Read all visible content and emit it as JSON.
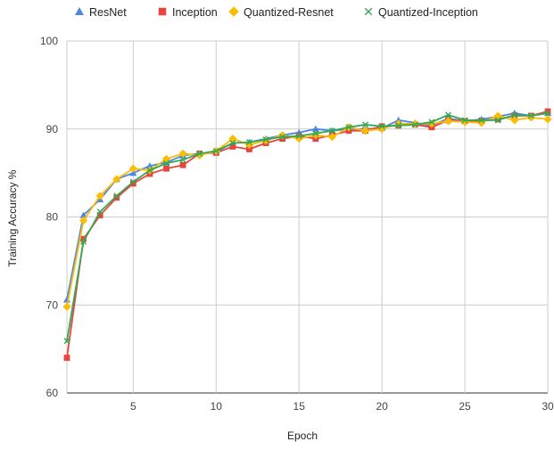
{
  "chart_data": {
    "type": "line",
    "title": "",
    "xlabel": "Epoch",
    "ylabel": "Training Accuracy %",
    "xlim": [
      1,
      30
    ],
    "ylim": [
      60,
      100
    ],
    "x_ticks": [
      5,
      10,
      15,
      20,
      25,
      30
    ],
    "y_ticks": [
      60,
      70,
      80,
      90,
      100
    ],
    "grid": true,
    "legend_position": "top",
    "x": [
      1,
      2,
      3,
      4,
      5,
      6,
      7,
      8,
      9,
      10,
      11,
      12,
      13,
      14,
      15,
      16,
      17,
      18,
      19,
      20,
      21,
      22,
      23,
      24,
      25,
      26,
      27,
      28,
      29,
      30
    ],
    "series": [
      {
        "name": "ResNet",
        "color": "#4a86e8",
        "marker": "triangle",
        "values": [
          70.6,
          80.2,
          82.0,
          84.3,
          85.0,
          85.8,
          86.2,
          87.0,
          87.2,
          87.4,
          88.4,
          88.5,
          88.9,
          89.3,
          89.6,
          90.0,
          89.8,
          90.0,
          90.0,
          90.1,
          91.0,
          90.7,
          90.4,
          91.2,
          90.9,
          91.1,
          91.4,
          91.8,
          91.5,
          91.8
        ]
      },
      {
        "name": "Inception",
        "color": "#e8453c",
        "marker": "square",
        "values": [
          64.0,
          77.5,
          80.2,
          82.2,
          83.8,
          84.9,
          85.5,
          85.9,
          87.2,
          87.3,
          88.0,
          87.7,
          88.4,
          88.9,
          89.2,
          88.9,
          89.3,
          89.8,
          89.8,
          90.3,
          90.4,
          90.5,
          90.2,
          91.0,
          90.9,
          90.9,
          91.1,
          91.5,
          91.5,
          92.0
        ]
      },
      {
        "name": "Quantized-Resnet",
        "color": "#fbbc04",
        "marker": "diamond",
        "values": [
          69.8,
          79.6,
          82.4,
          84.3,
          85.5,
          85.3,
          86.6,
          87.2,
          87.0,
          87.5,
          88.9,
          88.2,
          88.7,
          89.3,
          88.9,
          89.3,
          89.1,
          90.2,
          89.8,
          90.0,
          90.6,
          90.6,
          90.6,
          90.9,
          90.8,
          90.7,
          91.5,
          91.0,
          91.3,
          91.1
        ]
      },
      {
        "name": "Quantized-Inception",
        "color": "#34a853",
        "marker": "x",
        "values": [
          65.9,
          77.2,
          80.6,
          82.4,
          84.0,
          85.3,
          86.1,
          86.5,
          87.2,
          87.5,
          88.4,
          88.5,
          88.8,
          89.1,
          89.2,
          89.5,
          89.8,
          90.2,
          90.5,
          90.3,
          90.4,
          90.5,
          90.8,
          91.6,
          91.0,
          91.0,
          91.0,
          91.6,
          91.5,
          91.8
        ]
      }
    ]
  }
}
